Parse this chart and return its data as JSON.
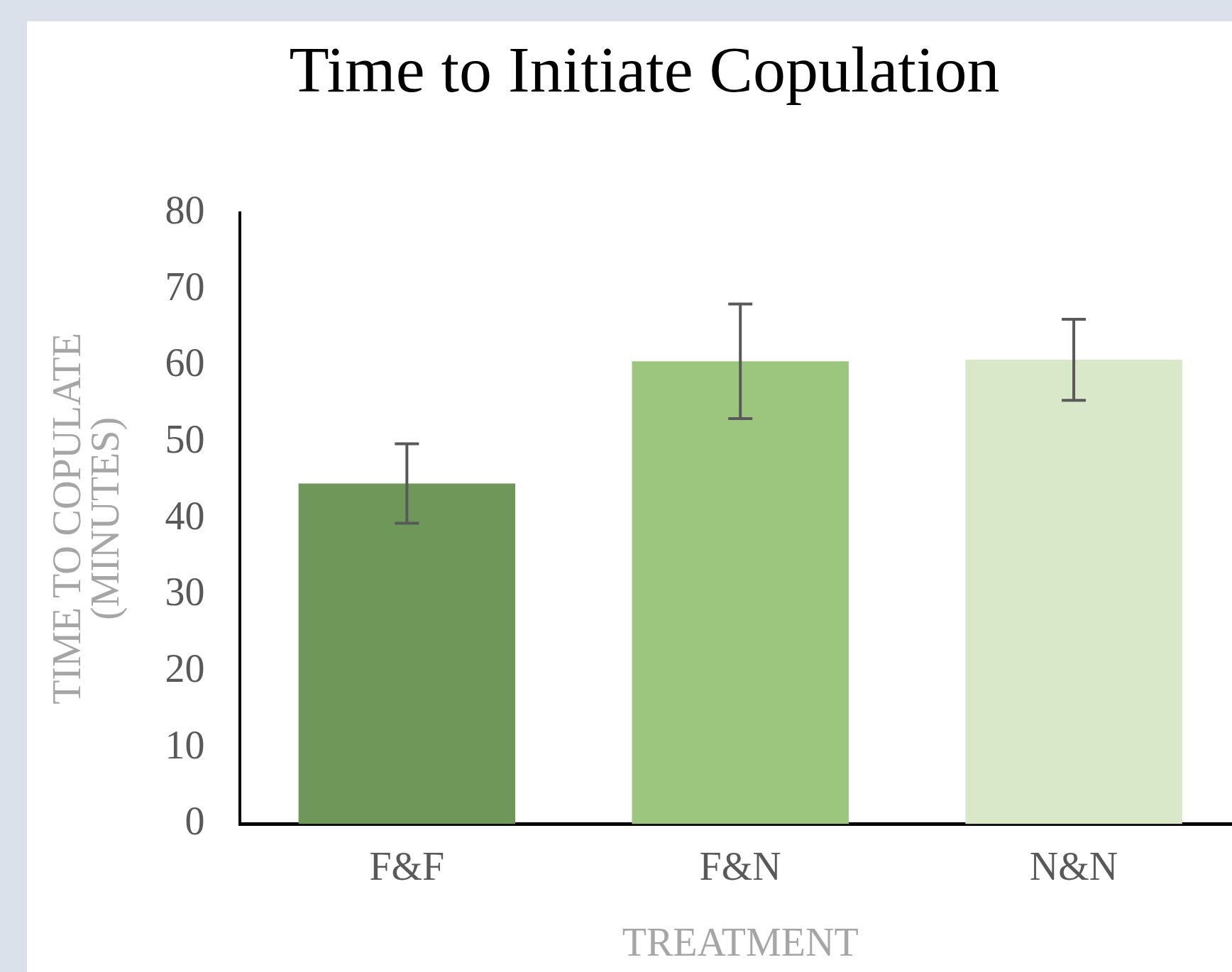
{
  "chart_data": {
    "type": "bar",
    "title": "Time to Initiate Copulation",
    "xlabel": "TREATMENT",
    "ylabel": "TIME TO COPULATE (MINUTES)",
    "categories": [
      "F&F",
      "F&N",
      "N&N"
    ],
    "values": [
      44.6,
      60.6,
      60.8
    ],
    "errors": [
      5.2,
      7.5,
      5.3
    ],
    "colors": [
      "#70975a",
      "#9cc67e",
      "#d9e8c9"
    ],
    "ylim": [
      0,
      80
    ],
    "yticks": [
      0,
      10,
      20,
      30,
      40,
      50,
      60,
      70,
      80
    ],
    "grid": false,
    "legend": false
  }
}
